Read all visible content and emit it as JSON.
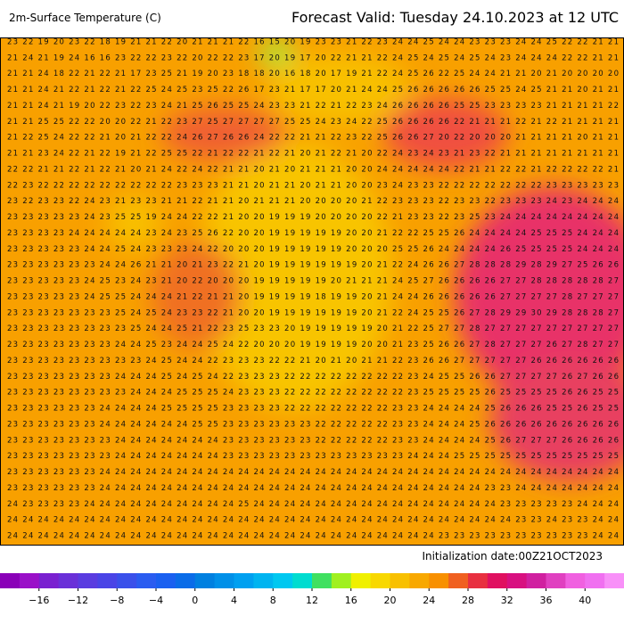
{
  "title": "2m-Surface Temperature (C)",
  "forecast": "Forecast Valid:  Tuesday 24.10.2023 at 12 UTC",
  "initialization": "Initialization date:00Z21OCT2023",
  "grid_rows": [
    "23 22 19 20 23 22 18 19 21 21 22 20 21 21 21 22 16 15 20 19 23 23 21 22 23 24 24 25 24 24 23 23 23 24 24 25 22 22 21 21",
    "21 24 21 19 24 16 16 23 22 22 23 22 20 22 22 23 17 20 19 17 20 22 21 21 22 24 25 24 25 24 25 24 23 24 24 24 22 22 21 21",
    "21 21 24 18 22 21 22 21 17 23 25 21 19 20 23 18 18 20 16 18 20 17 19 21 22 24 25 26 22 25 24 24 21 21 20 21 20 20 20 20",
    "21 21 24 21 22 21 22 21 22 25 24 25 23 25 22 26 17 23 21 17 17 20 21 24 24 25 26 26 26 26 26 25 25 24 25 21 21 20 21 21",
    "21 21 24 21 19 20 22 23 22 23 24 21 25 26 25 25 24 23 23 21 22 21 22 23 24 26 26 26 26 25 25 23 23 23 23 21 21 21 21 22",
    "21 21 25 25 22 22 20 20 22 21 22 23 27 25 27 27 27 27 25 25 24 23 24 22 25 26 26 26 26 22 21 21 21 22 21 22 21 21 21 21",
    "21 22 25 24 22 22 21 20 21 22 22 24 26 27 26 26 24 22 22 21 21 22 23 22 25 26 26 27 20 22 20 20 20 21 21 21 21 20 21 21",
    "21 21 23 24 22 21 22 19 21 22 25 25 22 21 22 22 21 22 21 20 21 22 21 20 22 24 23 24 23 21 23 22 21 21 21 21 21 21 21 21",
    "22 22 21 21 22 21 22 21 20 21 24 22 24 22 21 21 20 21 20 21 21 21 20 20 24 24 24 24 24 22 21 21 22 22 21 22 22 22 22 21",
    "22 23 22 22 22 22 22 22 22 22 22 23 23 23 21 21 20 21 21 20 21 21 20 20 23 24 23 23 22 22 22 22 22 22 22 23 23 23 23 23",
    "23 22 23 23 22 24 23 21 23 23 21 21 22 21 21 20 21 21 21 20 20 20 20 21 22 23 23 23 22 23 23 22 23 23 23 24 23 24 24 24",
    "23 23 23 23 23 24 23 25 25 19 24 24 22 22 21 20 20 19 19 19 20 20 20 20 22 21 23 23 22 23 25 23 24 24 24 24 24 24 24 24",
    "23 23 23 23 24 24 24 24 24 23 24 23 25 26 22 20 20 19 19 19 19 19 20 20 21 22 22 25 25 26 24 24 24 24 25 25 25 24 24 24",
    "23 23 23 23 23 24 24 25 24 23 23 23 24 22 20 20 20 19 19 19 19 19 20 20 20 25 25 26 24 24 24 24 26 25 25 25 25 24 24 24",
    "23 23 23 23 23 23 24 24 26 21 21 20 21 23 22 21 20 19 19 19 19 19 19 20 21 22 24 26 26 27 28 28 28 29 28 29 27 25 26 26",
    "23 23 23 23 23 24 25 23 24 23 21 20 22 20 20 20 19 19 19 19 19 20 21 21 21 24 25 27 26 26 26 26 27 27 28 28 28 28 28 27",
    "23 23 23 23 23 24 25 25 24 24 24 21 22 21 21 20 19 19 19 19 18 19 19 20 21 24 24 26 26 26 26 26 27 27 27 27 28 27 27 27",
    "23 23 23 23 23 23 23 25 24 25 24 23 23 22 21 20 20 19 19 19 19 19 19 20 21 22 24 25 25 26 27 28 29 29 30 29 28 28 28 27",
    "23 23 23 23 23 23 23 23 25 24 24 25 21 22 23 25 23 23 20 19 19 19 19 19 20 21 22 25 27 27 28 27 27 27 27 27 27 27 27 27",
    "23 23 23 23 23 23 23 24 24 25 23 24 24 25 24 22 20 20 20 19 19 19 19 20 20 21 23 25 26 26 27 28 27 27 27 26 27 28 27 27",
    "23 23 23 23 23 23 23 23 23 24 25 24 24 22 23 23 23 22 22 21 20 21 20 21 21 22 23 26 26 27 27 27 27 27 26 26 26 26 26 26",
    "23 23 23 23 23 23 23 24 24 24 25 24 25 24 22 23 23 23 22 22 22 22 22 22 22 22 23 24 25 25 26 26 27 27 27 27 26 27 26 26",
    "23 23 23 23 23 23 23 23 24 24 24 25 25 25 24 23 23 23 22 22 22 22 22 22 22 22 23 25 25 25 25 26 25 25 25 25 26 26 25 25",
    "23 23 23 23 23 23 24 24 24 24 25 25 25 25 23 23 23 23 22 22 22 22 22 22 22 23 23 24 24 24 24 25 26 26 26 25 25 26 25 25",
    "23 23 23 23 23 23 24 24 24 24 24 24 25 25 23 23 23 23 23 23 22 22 22 22 22 23 23 24 24 24 25 26 26 26 26 26 26 26 26 26",
    "23 23 23 23 23 23 23 24 24 24 24 24 24 24 23 23 23 23 23 23 22 22 22 22 22 23 23 24 24 24 24 25 26 27 27 27 26 26 26 26",
    "23 23 23 23 23 23 23 24 24 24 24 24 24 24 23 23 23 23 23 23 23 23 23 23 23 23 24 24 24 25 25 25 25 25 25 25 25 25 25 25",
    "23 23 23 23 23 23 24 24 24 24 24 24 24 24 24 24 24 24 24 24 24 24 24 24 24 24 24 24 24 24 24 24 24 24 24 24 24 24 24 24",
    "23 23 23 23 23 23 24 24 24 24 24 24 24 24 24 24 24 24 24 24 24 24 24 24 24 24 24 24 24 24 24 23 23 24 24 24 24 24 24 24",
    "24 23 23 23 23 24 24 24 24 24 24 24 24 24 24 25 24 24 24 24 24 24 24 24 24 24 24 24 24 24 24 24 23 23 23 23 23 24 24 24",
    "24 24 24 24 24 24 24 24 24 24 24 24 24 24 24 24 24 24 24 24 24 24 24 24 24 24 24 24 24 24 24 24 24 23 23 24 23 23 24 24",
    "24 24 24 24 24 24 24 24 24 24 24 24 24 24 24 24 24 24 24 24 24 24 24 24 24 24 24 24 23 23 23 23 23 23 23 23 23 23 24 24"
  ],
  "colorbar": {
    "lim": [
      -20,
      44
    ],
    "colors": [
      "#8a00b8",
      "#9a10c8",
      "#7a20d0",
      "#6a30d8",
      "#5a3ce0",
      "#4a44e6",
      "#3a50ea",
      "#2a5cf0",
      "#1a60f0",
      "#0a6ce8",
      "#0080e0",
      "#0090e8",
      "#00a0f0",
      "#00b4f0",
      "#00c8f0",
      "#00dcd0",
      "#40e060",
      "#a0f020",
      "#f0f000",
      "#f8d800",
      "#f8c000",
      "#f8a800",
      "#f89000",
      "#f06020",
      "#e83040",
      "#e01060",
      "#d81080",
      "#d020a0",
      "#e040c0",
      "#f060e0",
      "#f070f0",
      "#f890f8"
    ],
    "ticks": [
      {
        "value": -16,
        "label": "−16"
      },
      {
        "value": -12,
        "label": "−12"
      },
      {
        "value": -8,
        "label": "−8"
      },
      {
        "value": -4,
        "label": "−4"
      },
      0,
      4,
      8,
      12,
      16,
      20,
      24,
      28,
      32,
      36,
      40
    ]
  }
}
